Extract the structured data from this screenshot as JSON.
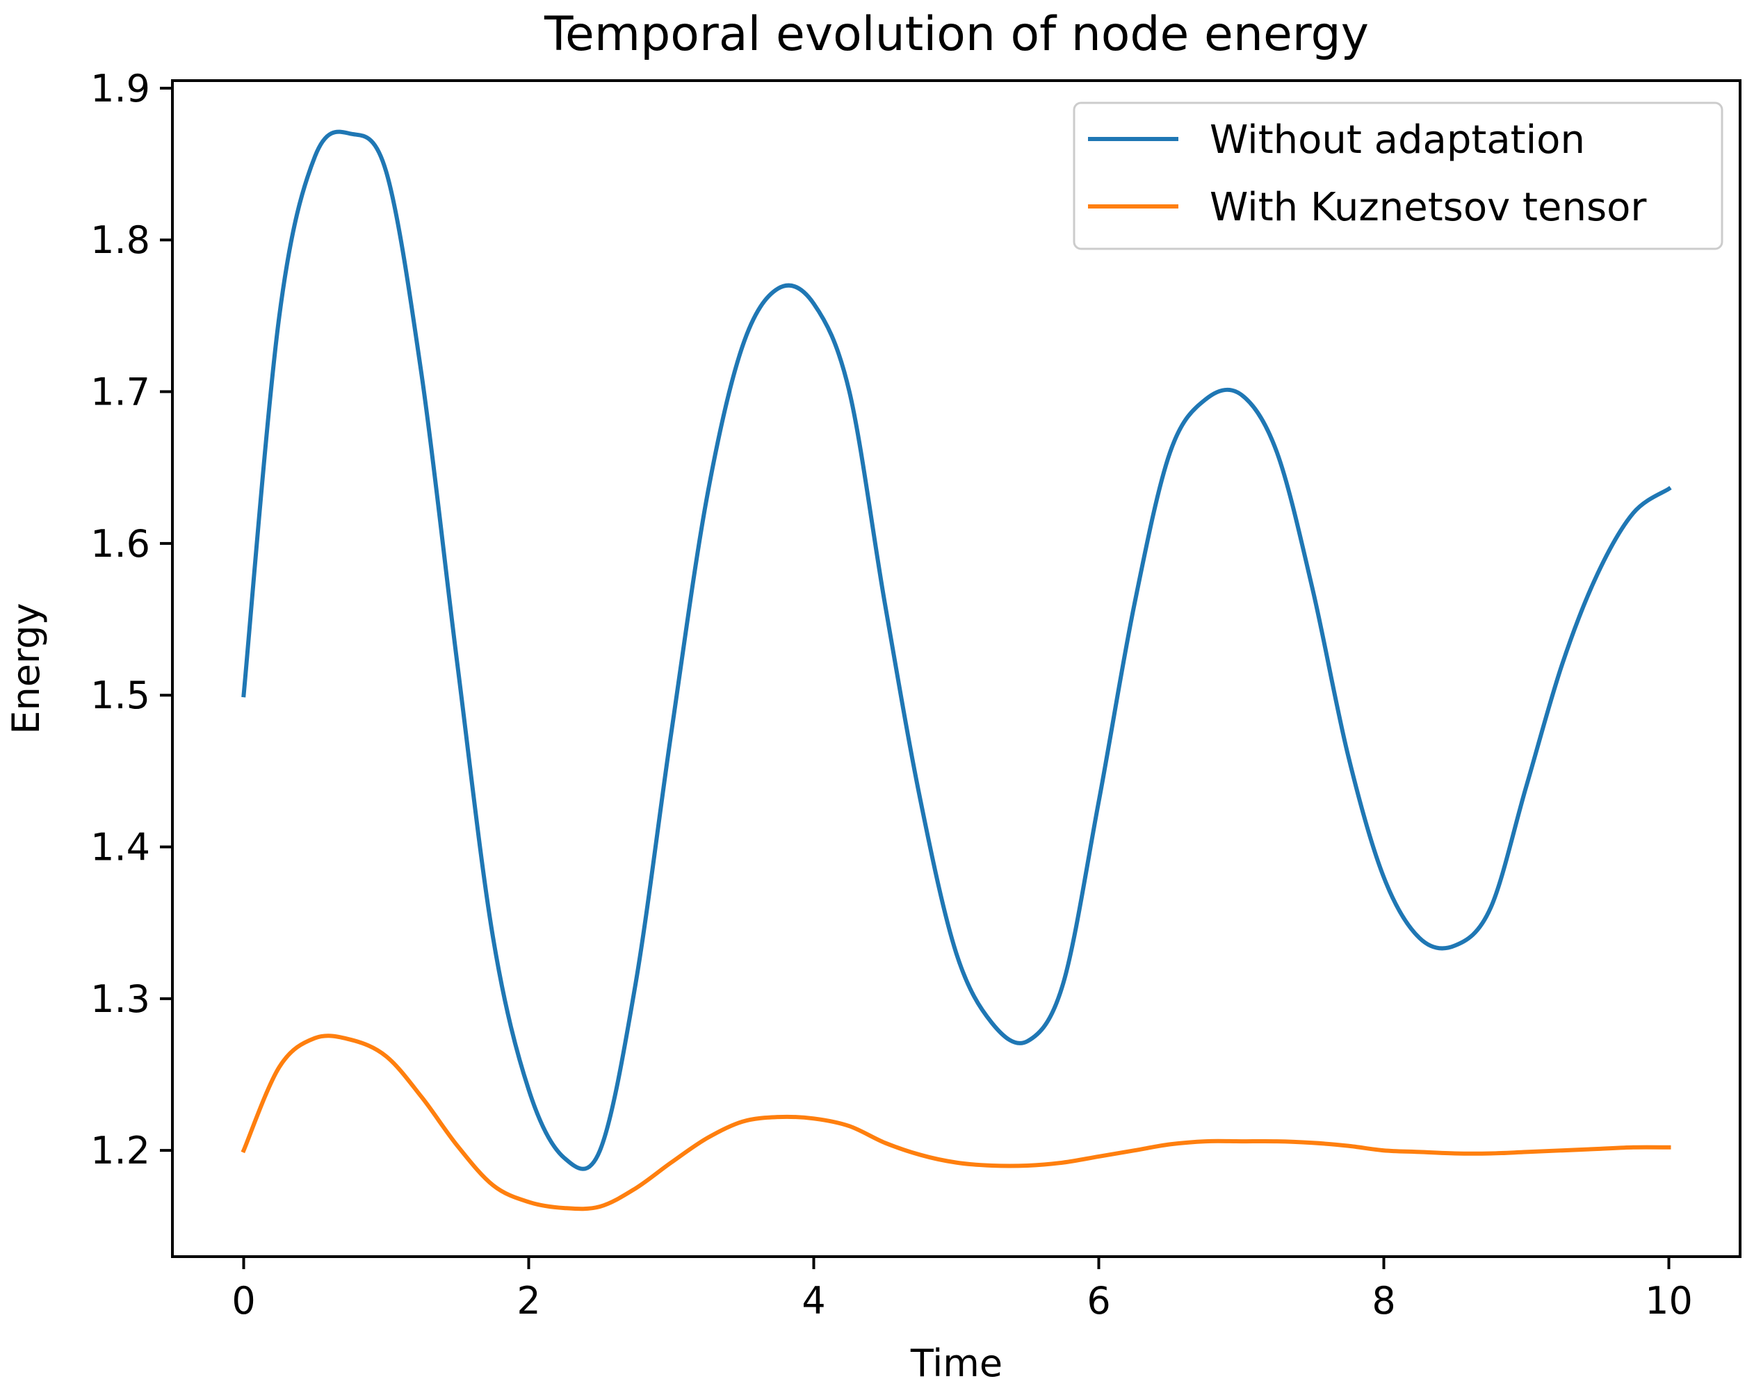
{
  "chart_data": {
    "type": "line",
    "title": "Temporal evolution of node energy",
    "xlabel": "Time",
    "ylabel": "Energy",
    "xlim": [
      -0.5,
      10.5
    ],
    "ylim": [
      1.13,
      1.905
    ],
    "xticks": [
      0,
      2,
      4,
      6,
      8,
      10
    ],
    "xtick_labels": [
      "0",
      "2",
      "4",
      "6",
      "8",
      "10"
    ],
    "yticks": [
      1.2,
      1.3,
      1.4,
      1.5,
      1.6,
      1.7,
      1.8,
      1.9
    ],
    "ytick_labels": [
      "1.2",
      "1.3",
      "1.4",
      "1.5",
      "1.6",
      "1.7",
      "1.8",
      "1.9"
    ],
    "grid": false,
    "legend_position": "upper right",
    "x": [
      0,
      0.25,
      0.5,
      0.75,
      1.0,
      1.25,
      1.5,
      1.75,
      2.0,
      2.25,
      2.5,
      2.75,
      3.0,
      3.25,
      3.5,
      3.75,
      4.0,
      4.25,
      4.5,
      4.75,
      5.0,
      5.25,
      5.5,
      5.75,
      6.0,
      6.25,
      6.5,
      6.75,
      7.0,
      7.25,
      7.5,
      7.75,
      8.0,
      8.25,
      8.5,
      8.75,
      9.0,
      9.25,
      9.5,
      9.75,
      10.0
    ],
    "series": [
      {
        "name": "Without adaptation",
        "color": "#1f77b4",
        "values": [
          1.5,
          1.75,
          1.855,
          1.87,
          1.845,
          1.71,
          1.52,
          1.34,
          1.24,
          1.195,
          1.2,
          1.31,
          1.475,
          1.63,
          1.73,
          1.768,
          1.758,
          1.7,
          1.56,
          1.43,
          1.33,
          1.284,
          1.272,
          1.31,
          1.43,
          1.56,
          1.66,
          1.695,
          1.698,
          1.66,
          1.57,
          1.46,
          1.38,
          1.34,
          1.335,
          1.36,
          1.44,
          1.52,
          1.58,
          1.62,
          1.636
        ]
      },
      {
        "name": "With Kuznetsov tensor",
        "color": "#ff7f0e",
        "values": [
          1.2,
          1.255,
          1.274,
          1.273,
          1.262,
          1.235,
          1.203,
          1.177,
          1.166,
          1.162,
          1.163,
          1.175,
          1.192,
          1.208,
          1.219,
          1.222,
          1.221,
          1.216,
          1.205,
          1.197,
          1.192,
          1.19,
          1.19,
          1.192,
          1.196,
          1.2,
          1.204,
          1.206,
          1.206,
          1.206,
          1.205,
          1.203,
          1.2,
          1.199,
          1.198,
          1.198,
          1.199,
          1.2,
          1.201,
          1.202,
          1.202
        ]
      }
    ]
  }
}
